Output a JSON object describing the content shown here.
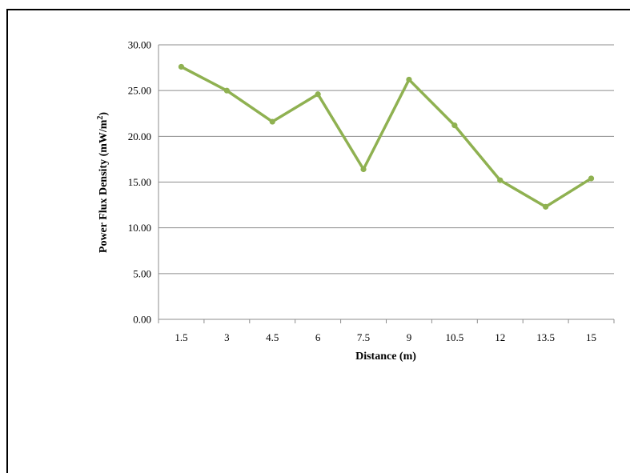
{
  "chart_data": {
    "type": "line",
    "title": "",
    "xlabel": "Distance (m)",
    "ylabel": "Power Flux Density (mW/m",
    "ylabel_superscript": "2",
    "ylabel_suffix": ")",
    "categories": [
      "1.5",
      "3",
      "4.5",
      "6",
      "7.5",
      "9",
      "10.5",
      "12",
      "13.5",
      "15"
    ],
    "series": [
      {
        "values": [
          27.6,
          25.0,
          21.6,
          24.6,
          16.4,
          26.2,
          21.2,
          15.2,
          12.3,
          15.4
        ],
        "color": "#8fb151"
      }
    ],
    "ylim": [
      0,
      30
    ],
    "y_ticks": [
      "0.00",
      "5.00",
      "10.00",
      "15.00",
      "20.00",
      "25.00",
      "30.00"
    ],
    "grid": "horizontal",
    "legend": "none"
  }
}
